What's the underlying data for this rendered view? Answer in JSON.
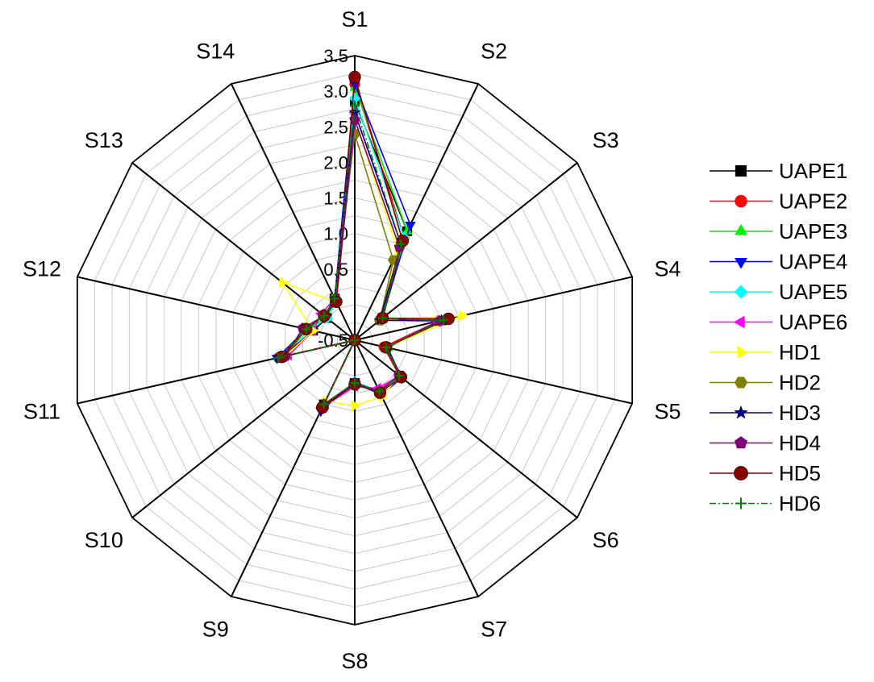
{
  "chart_data": {
    "type": "radar",
    "axes": [
      "S1",
      "S2",
      "S3",
      "S4",
      "S5",
      "S6",
      "S7",
      "S8",
      "S9",
      "S10",
      "S11",
      "S12",
      "S13",
      "S14"
    ],
    "r_ticks": [
      "-0.5",
      "0.5",
      "1.0",
      "1.5",
      "2.0",
      "2.5",
      "3.0",
      "3.5"
    ],
    "r_range": [
      -0.5,
      3.5
    ],
    "grid_rings": 16,
    "grid": true,
    "legend_position": "right",
    "series": [
      {
        "name": "UAPE1",
        "color": "#000000",
        "marker": "square",
        "line_style": "solid",
        "values": [
          2.85,
          1.2,
          0.0,
          0.75,
          -0.05,
          0.3,
          0.3,
          0.1,
          0.5,
          -0.5,
          0.55,
          0.1,
          0.0,
          0.15
        ]
      },
      {
        "name": "UAPE2",
        "color": "#ff0000",
        "marker": "circle",
        "line_style": "solid",
        "values": [
          3.1,
          1.1,
          -0.05,
          0.7,
          -0.08,
          0.3,
          0.28,
          0.12,
          0.55,
          -0.5,
          0.6,
          0.2,
          0.05,
          0.1
        ]
      },
      {
        "name": "UAPE3",
        "color": "#00ee00",
        "marker": "triangle-up",
        "line_style": "solid",
        "values": [
          3.05,
          1.2,
          0.0,
          0.75,
          -0.02,
          0.32,
          0.3,
          0.1,
          0.55,
          -0.5,
          0.6,
          0.2,
          0.0,
          0.15
        ]
      },
      {
        "name": "UAPE4",
        "color": "#0000ff",
        "marker": "triangle-down",
        "line_style": "solid",
        "values": [
          3.1,
          1.3,
          -0.02,
          0.72,
          -0.03,
          0.35,
          0.35,
          0.1,
          0.6,
          -0.5,
          0.62,
          0.2,
          0.05,
          0.15
        ]
      },
      {
        "name": "UAPE5",
        "color": "#00ffff",
        "marker": "diamond",
        "line_style": "solid",
        "values": [
          2.9,
          1.1,
          -0.05,
          0.7,
          -0.05,
          0.32,
          0.3,
          0.08,
          0.55,
          -0.5,
          0.55,
          0.15,
          0.0,
          0.1
        ]
      },
      {
        "name": "UAPE6",
        "color": "#ff00ff",
        "marker": "triangle-left",
        "line_style": "solid",
        "values": [
          2.7,
          1.0,
          -0.05,
          0.7,
          -0.05,
          0.3,
          0.25,
          0.15,
          0.55,
          -0.5,
          0.45,
          0.1,
          0.1,
          0.15
        ]
      },
      {
        "name": "HD1",
        "color": "#ffff00",
        "marker": "triangle-right",
        "line_style": "solid",
        "values": [
          2.6,
          0.9,
          -0.05,
          1.05,
          -0.05,
          0.3,
          0.38,
          0.42,
          0.45,
          -0.5,
          0.5,
          0.1,
          0.8,
          0.1
        ]
      },
      {
        "name": "HD2",
        "color": "#808000",
        "marker": "hexagon",
        "line_style": "solid",
        "values": [
          2.4,
          0.75,
          -0.05,
          0.75,
          -0.05,
          0.35,
          0.3,
          0.12,
          0.55,
          -0.5,
          0.5,
          0.2,
          0.05,
          0.15
        ]
      },
      {
        "name": "HD3",
        "color": "#000080",
        "marker": "star",
        "line_style": "solid",
        "values": [
          2.7,
          1.0,
          -0.05,
          0.75,
          -0.05,
          0.3,
          0.3,
          0.1,
          0.55,
          -0.5,
          0.6,
          0.2,
          0.05,
          0.15
        ]
      },
      {
        "name": "HD4",
        "color": "#800080",
        "marker": "pentagon",
        "line_style": "solid",
        "values": [
          2.6,
          0.95,
          0.0,
          0.72,
          -0.05,
          0.3,
          0.3,
          0.1,
          0.5,
          -0.5,
          0.5,
          0.25,
          0.05,
          0.1
        ]
      },
      {
        "name": "HD5",
        "color": "#8b0000",
        "marker": "ball",
        "line_style": "solid",
        "values": [
          3.2,
          1.05,
          0.0,
          0.85,
          -0.05,
          0.33,
          0.32,
          0.12,
          0.55,
          -0.5,
          0.55,
          0.2,
          0.05,
          0.1
        ]
      },
      {
        "name": "HD6",
        "color": "#008000",
        "marker": "plus",
        "line_style": "dashdot",
        "values": [
          2.8,
          1.0,
          0.0,
          0.78,
          -0.05,
          0.3,
          0.3,
          0.1,
          0.5,
          -0.5,
          0.6,
          0.2,
          0.05,
          0.15
        ]
      }
    ]
  }
}
